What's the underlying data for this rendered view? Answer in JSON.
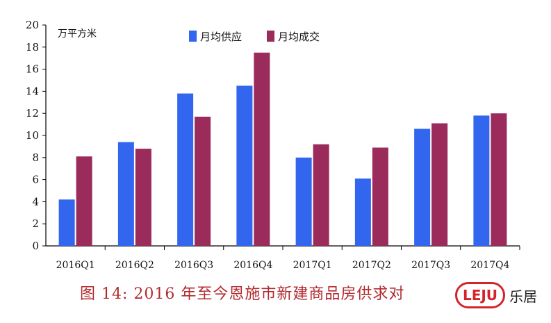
{
  "chart_data": {
    "type": "bar",
    "categories": [
      "2016Q1",
      "2016Q2",
      "2016Q3",
      "2016Q4",
      "2017Q1",
      "2017Q2",
      "2017Q3",
      "2017Q4"
    ],
    "series": [
      {
        "name": "月均供应",
        "color": "#3366ee",
        "values": [
          4.2,
          9.4,
          13.8,
          14.5,
          8.0,
          6.1,
          10.6,
          11.8
        ]
      },
      {
        "name": "月均成交",
        "color": "#9a2b5a",
        "values": [
          8.1,
          8.8,
          11.7,
          17.5,
          9.2,
          8.9,
          11.1,
          12.0
        ]
      }
    ],
    "ylim": [
      0,
      20
    ],
    "yticks": [
      0,
      2,
      4,
      6,
      8,
      10,
      12,
      14,
      16,
      18,
      20
    ],
    "ylabel": "万平方米",
    "legend_position": "top"
  },
  "caption": "图 14: 2016 年至今恩施市新建商品房供求对",
  "logo": {
    "text": "LEJU",
    "cn": "乐居"
  }
}
